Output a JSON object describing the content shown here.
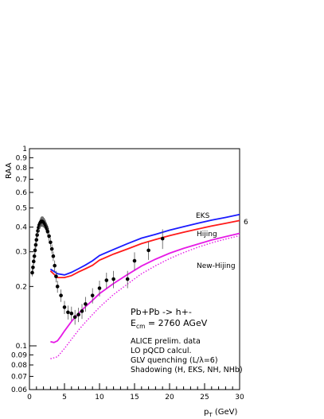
{
  "chart_data": {
    "type": "line",
    "xlabel": "p",
    "xlabel_sub": "T",
    "xlabel_unit": " (GeV)",
    "ylabel": "RAA",
    "xlim": [
      0,
      30
    ],
    "ylim": [
      0.06,
      1
    ],
    "y_scale": "log",
    "grid": false,
    "x_ticks": [
      0,
      5,
      10,
      15,
      20,
      25,
      30
    ],
    "y_ticks": [
      {
        "v": 0.06,
        "label": "0.06"
      },
      {
        "v": 0.07,
        "label": "0.07"
      },
      {
        "v": 0.08,
        "label": "0.08"
      },
      {
        "v": 0.09,
        "label": "0.09"
      },
      {
        "v": 0.1,
        "label": "0.1"
      },
      {
        "v": 0.2,
        "label": "0.2"
      },
      {
        "v": 0.3,
        "label": "0.3"
      },
      {
        "v": 0.4,
        "label": "0.4"
      },
      {
        "v": 0.5,
        "label": "0.5"
      },
      {
        "v": 0.6,
        "label": "0.6"
      },
      {
        "v": 0.7,
        "label": "0.7"
      },
      {
        "v": 0.8,
        "label": "0.8"
      },
      {
        "v": 0.9,
        "label": "0.9"
      },
      {
        "v": 1,
        "label": "1"
      }
    ],
    "series": [
      {
        "name": "EKS",
        "color": "#1a1aff",
        "style": "solid",
        "x": [
          3,
          4,
          5,
          6,
          7,
          8,
          9,
          10,
          12,
          14,
          16,
          18,
          20,
          22,
          24,
          26,
          28,
          30
        ],
        "y": [
          0.245,
          0.232,
          0.229,
          0.236,
          0.246,
          0.257,
          0.27,
          0.287,
          0.308,
          0.33,
          0.352,
          0.368,
          0.386,
          0.402,
          0.418,
          0.434,
          0.448,
          0.464
        ]
      },
      {
        "name": "Hijing",
        "color": "#ff1a1a",
        "style": "solid",
        "x": [
          3,
          4,
          5,
          6,
          7,
          8,
          9,
          10,
          12,
          14,
          16,
          18,
          20,
          22,
          24,
          26,
          28,
          30
        ],
        "y": [
          0.24,
          0.222,
          0.222,
          0.227,
          0.237,
          0.246,
          0.256,
          0.272,
          0.292,
          0.31,
          0.33,
          0.346,
          0.362,
          0.377,
          0.391,
          0.405,
          0.418,
          0.432
        ]
      },
      {
        "name": "New-Hijing",
        "color": "#e61ae6",
        "style": "solid",
        "x": [
          3,
          3.5,
          4,
          4.5,
          5,
          6,
          7,
          8,
          9,
          10,
          12,
          14,
          16,
          18,
          20,
          22,
          24,
          26,
          28,
          30
        ],
        "y": [
          0.105,
          0.104,
          0.106,
          0.112,
          0.119,
          0.133,
          0.146,
          0.158,
          0.17,
          0.184,
          0.207,
          0.23,
          0.254,
          0.275,
          0.295,
          0.312,
          0.328,
          0.344,
          0.358,
          0.372
        ]
      },
      {
        "name": "",
        "color": "#e61ae6",
        "style": "dotted",
        "x": [
          3,
          4,
          5,
          6,
          7,
          8,
          9,
          10,
          12,
          14,
          16,
          18,
          20,
          22,
          24,
          26,
          28,
          30
        ],
        "y": [
          0.086,
          0.088,
          0.097,
          0.108,
          0.12,
          0.132,
          0.144,
          0.157,
          0.182,
          0.206,
          0.232,
          0.255,
          0.277,
          0.297,
          0.316,
          0.333,
          0.348,
          0.362
        ]
      },
      {
        "name": "ALICE prelim. data",
        "color": "#000000",
        "style": "markers",
        "x": [
          0.4,
          0.5,
          0.6,
          0.7,
          0.8,
          0.9,
          1.0,
          1.1,
          1.2,
          1.3,
          1.4,
          1.5,
          1.6,
          1.7,
          1.8,
          1.9,
          2.0,
          2.1,
          2.2,
          2.3,
          2.4,
          2.5,
          2.6,
          2.8,
          3.0,
          3.2,
          3.4,
          3.6,
          3.8,
          4.0,
          4.5,
          5.0,
          5.5,
          6.0,
          6.5,
          7.0,
          7.5,
          8.0,
          9.0,
          10.0,
          11.0,
          12.0,
          14.0,
          15.0,
          17.0,
          19.0
        ],
        "y": [
          0.235,
          0.25,
          0.268,
          0.285,
          0.305,
          0.325,
          0.345,
          0.365,
          0.383,
          0.398,
          0.41,
          0.418,
          0.424,
          0.427,
          0.428,
          0.427,
          0.425,
          0.421,
          0.416,
          0.41,
          0.402,
          0.392,
          0.38,
          0.36,
          0.335,
          0.31,
          0.285,
          0.255,
          0.225,
          0.2,
          0.18,
          0.157,
          0.148,
          0.146,
          0.14,
          0.144,
          0.15,
          0.163,
          0.18,
          0.196,
          0.215,
          0.218,
          0.218,
          0.27,
          0.305,
          0.35
        ],
        "err": [
          0.01,
          0.01,
          0.01,
          0.012,
          0.012,
          0.014,
          0.015,
          0.016,
          0.017,
          0.018,
          0.02,
          0.022,
          0.024,
          0.025,
          0.026,
          0.026,
          0.026,
          0.025,
          0.024,
          0.023,
          0.022,
          0.021,
          0.02,
          0.019,
          0.018,
          0.017,
          0.016,
          0.016,
          0.015,
          0.014,
          0.013,
          0.012,
          0.012,
          0.012,
          0.012,
          0.012,
          0.013,
          0.014,
          0.016,
          0.018,
          0.02,
          0.022,
          0.022,
          0.028,
          0.032,
          0.04
        ]
      }
    ],
    "side_label": "6",
    "annotations": {
      "line1": "Pb+Pb -> h+-",
      "line2_main": "E",
      "line2_sub": "cm",
      "line2_rest": " = 2760 AGeV",
      "line3": "ALICE prelim. data",
      "line4": "LO pQCD calcul.",
      "line5": "GLV quenching (L/λ=6)",
      "line6": "Shadowing (H, EKS, NH, NHb)"
    }
  }
}
